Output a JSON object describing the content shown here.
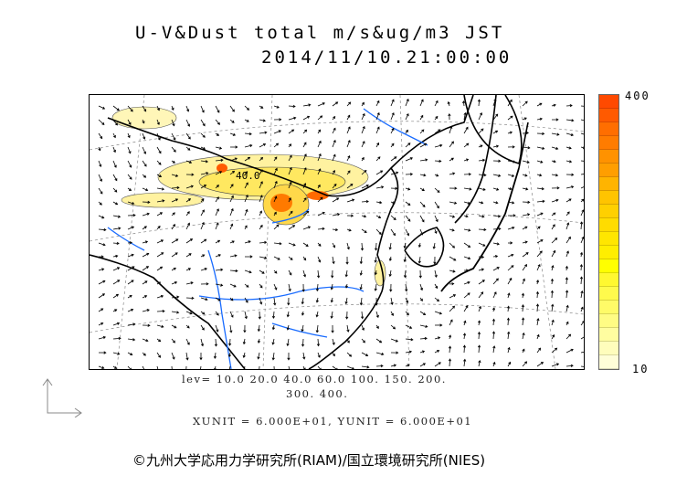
{
  "title": {
    "line1": "U-V&Dust total m/s&ug/m3 JST",
    "line2": "2014/11/10.21:00:00"
  },
  "colorbar": {
    "max_label": "400",
    "min_label": "10",
    "colors": [
      "#ff4a00",
      "#ff5a00",
      "#ff6e00",
      "#ff7c00",
      "#ff9200",
      "#ff9e00",
      "#ffb400",
      "#ffc400",
      "#ffd000",
      "#ffdc00",
      "#ffe600",
      "#ffee00",
      "#ffff00",
      "#fff830",
      "#fffa4c",
      "#fffb68",
      "#fffc84",
      "#fffda0",
      "#fffdbc",
      "#fffed8"
    ]
  },
  "legend": {
    "levels_line1": "lev= 10.0 20.0 40.0 60.0 100. 150. 200.",
    "levels_line2": "300. 400.",
    "units": "XUNIT = 6.000E+01, YUNIT = 6.000E+01"
  },
  "map": {
    "contour_label": "40.0",
    "coast_color": "#000000",
    "river_color": "#1a6cff"
  },
  "credit": "©九州大学応用力学研究所(RIAM)/国立環境研究所(NIES)"
}
